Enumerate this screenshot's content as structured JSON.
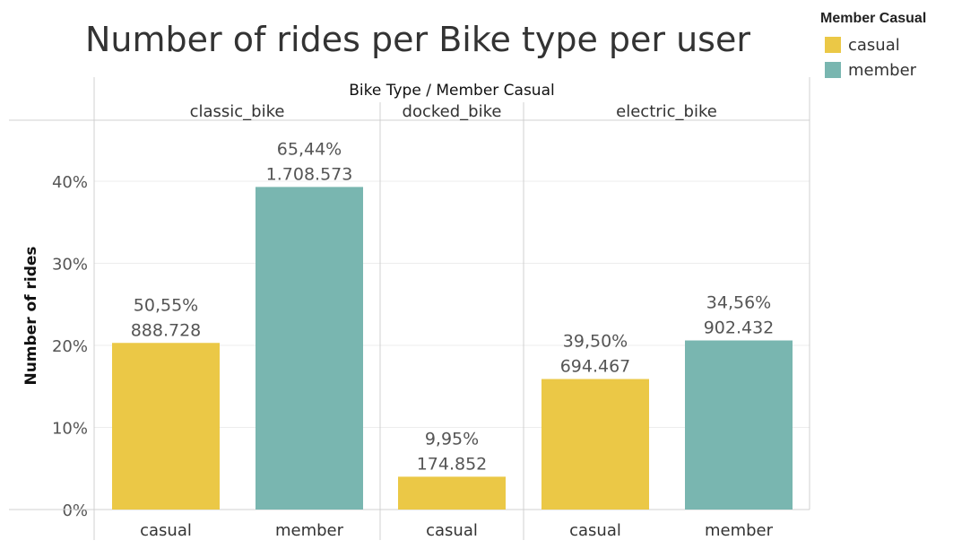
{
  "chart_data": {
    "type": "bar",
    "title": "Number of rides per Bike type per user",
    "header_label": "Bike Type / Member Casual",
    "ylabel": "Number of rides",
    "ylim": [
      0,
      45
    ],
    "yticks": [
      0,
      10,
      20,
      30,
      40
    ],
    "ytick_labels": [
      "0%",
      "10%",
      "20%",
      "30%",
      "40%"
    ],
    "groups": [
      {
        "name": "classic_bike",
        "bars": [
          {
            "category": "casual",
            "value": 20.3,
            "pct_label": "50,55%",
            "count_label": "888.728"
          },
          {
            "category": "member",
            "value": 39.3,
            "pct_label": "65,44%",
            "count_label": "1.708.573"
          }
        ]
      },
      {
        "name": "docked_bike",
        "bars": [
          {
            "category": "casual",
            "value": 4.0,
            "pct_label": "9,95%",
            "count_label": "174.852"
          }
        ]
      },
      {
        "name": "electric_bike",
        "bars": [
          {
            "category": "casual",
            "value": 15.9,
            "pct_label": "39,50%",
            "count_label": "694.467"
          },
          {
            "category": "member",
            "value": 20.6,
            "pct_label": "34,56%",
            "count_label": "902.432"
          }
        ]
      }
    ],
    "legend": {
      "title": "Member Casual",
      "items": [
        {
          "label": "casual",
          "color": "#EBC846"
        },
        {
          "label": "member",
          "color": "#79B6B0"
        }
      ]
    }
  }
}
